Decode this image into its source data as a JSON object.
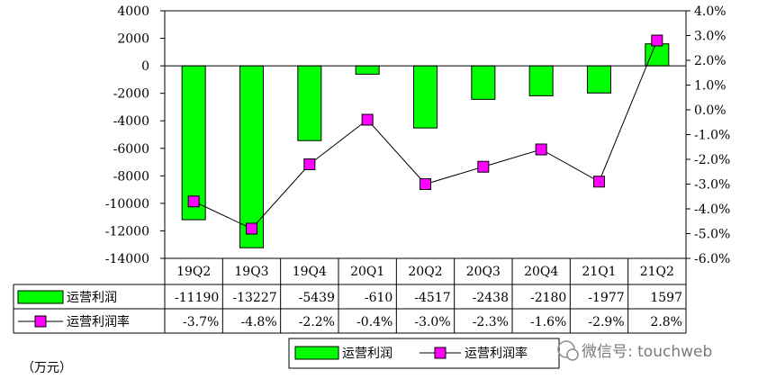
{
  "chart_data": {
    "type": "bar",
    "categories": [
      "19Q2",
      "19Q3",
      "19Q4",
      "20Q1",
      "20Q2",
      "20Q3",
      "20Q4",
      "21Q1",
      "21Q2"
    ],
    "series": [
      {
        "name": "运营利润",
        "type": "bar",
        "axis": "left",
        "color": "#00ff00",
        "values": [
          -11190,
          -13227,
          -5439,
          -610,
          -4517,
          -2438,
          -2180,
          -1977,
          1597
        ]
      },
      {
        "name": "运营利润率",
        "type": "line",
        "axis": "right",
        "color": "#ff00ff",
        "values": [
          -3.7,
          -4.8,
          -2.2,
          -0.4,
          -3.0,
          -2.3,
          -1.6,
          -2.9,
          2.8
        ]
      }
    ],
    "left_axis": {
      "ylim": [
        -14000,
        4000
      ],
      "ticks": [
        "4000",
        "2000",
        "0",
        "-2000",
        "-4000",
        "-6000",
        "-8000",
        "-10000",
        "-12000",
        "-14000"
      ]
    },
    "right_axis": {
      "ylim": [
        -6.0,
        4.0
      ],
      "ticks": [
        "4.0%",
        "3.0%",
        "2.0%",
        "1.0%",
        "0.0%",
        "-1.0%",
        "-2.0%",
        "-3.0%",
        "-4.0%",
        "-5.0%",
        "-6.0%"
      ]
    },
    "table": {
      "rows": [
        {
          "label": "运营利润",
          "cells": [
            "-11190",
            "-13227",
            "-5439",
            "-610",
            "-4517",
            "-2438",
            "-2180",
            "-1977",
            "1597"
          ]
        },
        {
          "label": "运营利润率",
          "cells": [
            "-3.7%",
            "-4.8%",
            "-2.2%",
            "-0.4%",
            "-3.0%",
            "-2.3%",
            "-1.6%",
            "-2.9%",
            "2.8%"
          ]
        }
      ]
    },
    "legend": {
      "position": "bottom-right",
      "items": [
        "运营利润",
        "运营利润率"
      ]
    },
    "unit_label": "（万元）",
    "watermark": "微信号: touchweb"
  }
}
